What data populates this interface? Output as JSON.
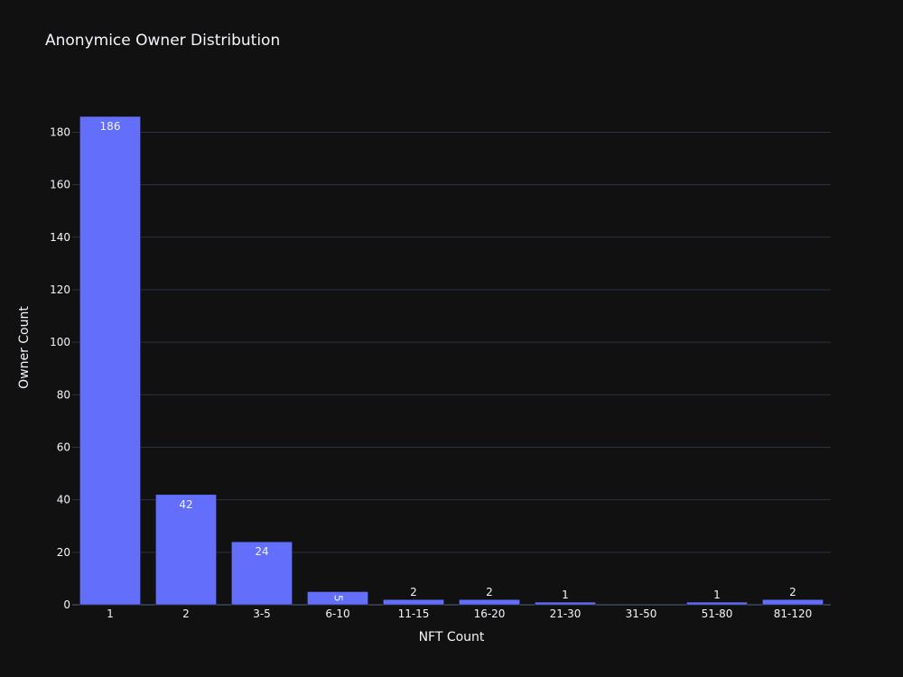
{
  "chart_data": {
    "type": "bar",
    "title": "Anonymice Owner Distribution",
    "xlabel": "NFT Count",
    "ylabel": "Owner Count",
    "categories": [
      "1",
      "2",
      "3-5",
      "6-10",
      "11-15",
      "16-20",
      "21-30",
      "31-50",
      "51-80",
      "81-120"
    ],
    "values": [
      186,
      42,
      24,
      5,
      2,
      2,
      1,
      0,
      1,
      2
    ],
    "data_labels": [
      "186",
      "42",
      "24",
      "5",
      "2",
      "2",
      "1",
      "",
      "1",
      "2"
    ],
    "ylim": [
      0,
      186
    ],
    "yticks": [
      0,
      20,
      40,
      60,
      80,
      100,
      120,
      140,
      160,
      180
    ],
    "grid": true,
    "legend": "none",
    "colors": {
      "background": "#111111",
      "bar": "#636efa",
      "bar_outline": "#111111",
      "text": "#f2f5fa",
      "grid": "#283442",
      "zeroline": "#506784"
    }
  }
}
